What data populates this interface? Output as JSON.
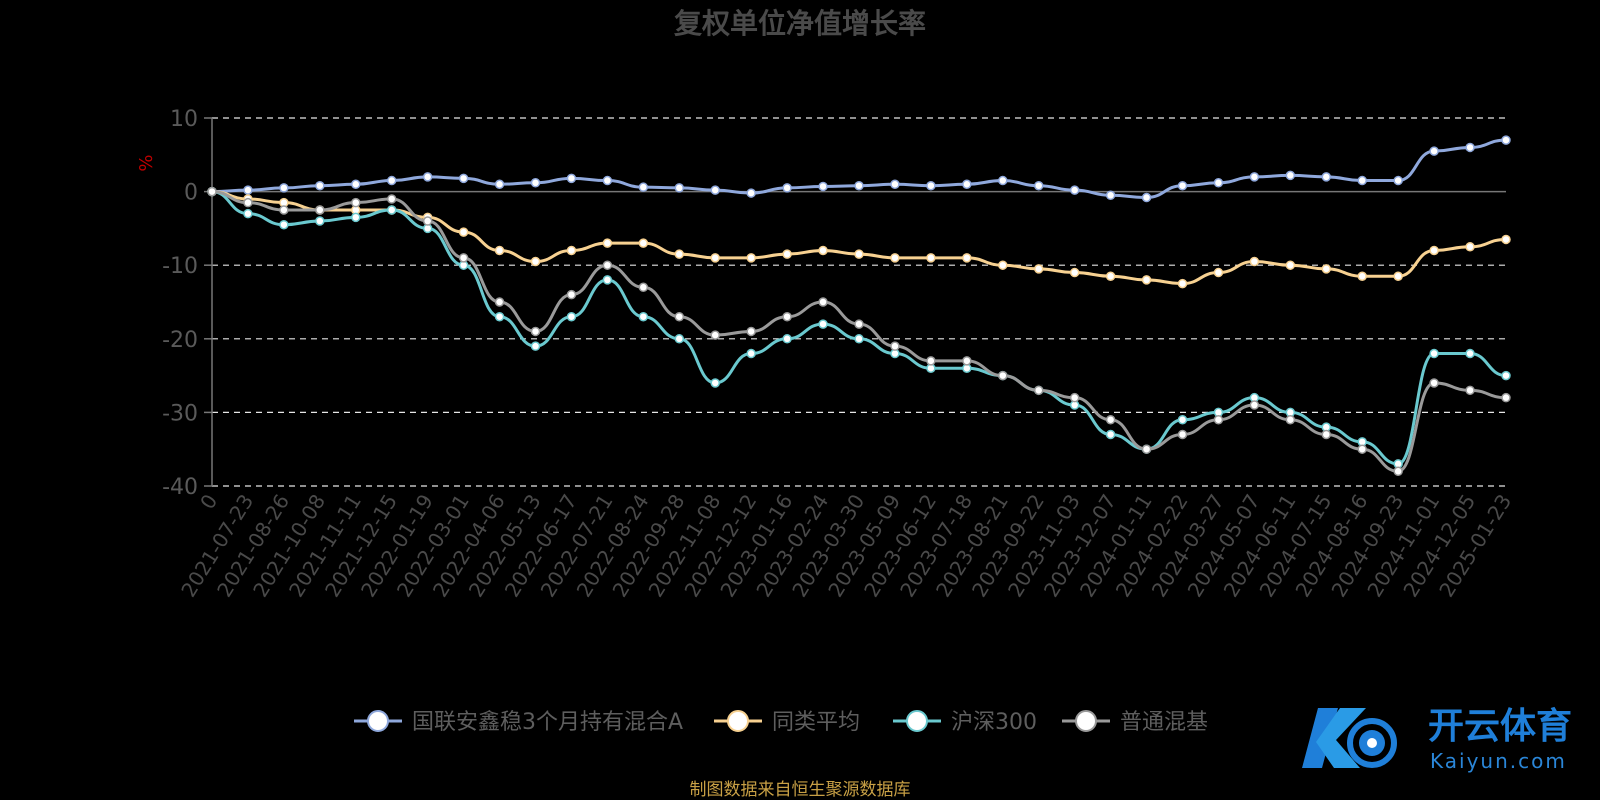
{
  "chart_data": {
    "type": "line",
    "title": "复权单位净值增长率",
    "ylabel": "%",
    "ylim": [
      -40,
      10
    ],
    "yticks": [
      "10",
      "0",
      "-10",
      "-20",
      "-30",
      "-40"
    ],
    "grid": true,
    "legend_position": "bottom",
    "x_tick_labels": [
      "0",
      "2021-07-23",
      "2021-08-26",
      "2021-10-08",
      "2021-11-11",
      "2021-12-15",
      "2022-01-19",
      "2022-03-01",
      "2022-04-06",
      "2022-05-13",
      "2022-06-17",
      "2022-07-21",
      "2022-08-24",
      "2022-09-28",
      "2022-11-08",
      "2022-12-12",
      "2023-01-16",
      "2023-02-24",
      "2023-03-30",
      "2023-05-09",
      "2023-06-12",
      "2023-07-18",
      "2023-08-21",
      "2023-09-22",
      "2023-11-03",
      "2023-12-07",
      "2024-01-11",
      "2024-02-22",
      "2024-03-27",
      "2024-05-07",
      "2024-06-11",
      "2024-07-15",
      "2024-08-16",
      "2024-09-23",
      "2024-11-01",
      "2024-12-05",
      "2025-01-23"
    ],
    "series": [
      {
        "name": "国联安鑫稳3个月持有混合A",
        "color": "#8fa8dc",
        "values": [
          0,
          0.2,
          0.5,
          0.8,
          1.0,
          1.5,
          2.0,
          1.8,
          1.0,
          1.2,
          1.8,
          1.5,
          0.6,
          0.5,
          0.2,
          -0.2,
          0.5,
          0.7,
          0.8,
          1.0,
          0.8,
          1.0,
          1.5,
          0.8,
          0.2,
          -0.5,
          -0.8,
          0.8,
          1.2,
          2.0,
          2.2,
          2.0,
          1.5,
          1.5,
          5.5,
          6.0,
          7.0
        ]
      },
      {
        "name": "同类平均",
        "color": "#f7d191",
        "values": [
          0,
          -1.0,
          -1.5,
          -2.5,
          -2.5,
          -2.5,
          -3.5,
          -5.5,
          -8.0,
          -9.5,
          -8.0,
          -7.0,
          -7.0,
          -8.5,
          -9.0,
          -9.0,
          -8.5,
          -8.0,
          -8.5,
          -9.0,
          -9.0,
          -9.0,
          -10.0,
          -10.5,
          -11.0,
          -11.5,
          -12.0,
          -12.5,
          -11.0,
          -9.5,
          -10.0,
          -10.5,
          -11.5,
          -11.5,
          -8.0,
          -7.5,
          -6.5
        ]
      },
      {
        "name": "沪深300",
        "color": "#6ac9cf",
        "values": [
          0,
          -3.0,
          -4.5,
          -4.0,
          -3.5,
          -2.5,
          -5.0,
          -10.0,
          -17.0,
          -21.0,
          -17.0,
          -12.0,
          -17.0,
          -20.0,
          -26.0,
          -22.0,
          -20.0,
          -18.0,
          -20.0,
          -22.0,
          -24.0,
          -24.0,
          -25.0,
          -27.0,
          -29.0,
          -33.0,
          -35.0,
          -31.0,
          -30.0,
          -28.0,
          -30.0,
          -32.0,
          -34.0,
          -37.0,
          -22.0,
          -22.0,
          -25.0
        ]
      },
      {
        "name": "普通混基",
        "color": "#9a9a9a",
        "values": [
          0,
          -1.5,
          -2.5,
          -2.5,
          -1.5,
          -1.0,
          -4.0,
          -9.0,
          -15.0,
          -19.0,
          -14.0,
          -10.0,
          -13.0,
          -17.0,
          -19.5,
          -19.0,
          -17.0,
          -15.0,
          -18.0,
          -21.0,
          -23.0,
          -23.0,
          -25.0,
          -27.0,
          -28.0,
          -31.0,
          -35.0,
          -33.0,
          -31.0,
          -29.0,
          -31.0,
          -33.0,
          -35.0,
          -38.0,
          -26.0,
          -27.0,
          -28.0
        ]
      }
    ],
    "source_note": "制图数据来自恒生聚源数据库"
  },
  "watermark": {
    "text": "开云体育",
    "sub": "Kaiyun.com"
  }
}
